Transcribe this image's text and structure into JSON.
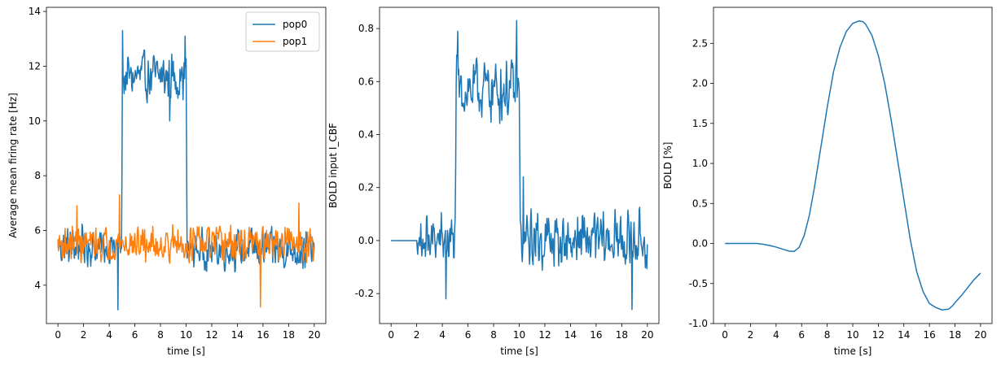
{
  "chart_data": [
    {
      "type": "line",
      "xlabel": "time [s]",
      "ylabel": "Average mean firing rate [Hz]",
      "xlim": [
        -0.9,
        20.9
      ],
      "ylim": [
        2.6,
        14.15
      ],
      "xticks": [
        0,
        2,
        4,
        6,
        8,
        10,
        12,
        14,
        16,
        18,
        20
      ],
      "yticks": [
        4,
        6,
        8,
        10,
        12,
        14
      ],
      "grid": false,
      "legend": {
        "placement": "top-right",
        "entries": [
          "pop0",
          "pop1"
        ]
      },
      "series": [
        {
          "name": "pop0",
          "color": "#1f77b4",
          "kind": "noisy",
          "step": 0.04,
          "x_start": 0,
          "x_end": 20,
          "segments": [
            {
              "from": 0,
              "to": 4.98,
              "mean": 5.4,
              "amp": 0.85
            },
            {
              "from": 5.05,
              "to": 10.0,
              "mean": 11.6,
              "amp": 1.05
            },
            {
              "from": 10.05,
              "to": 20,
              "mean": 5.3,
              "amp": 0.85
            }
          ],
          "extremes": [
            [
              4.68,
              3.1
            ],
            [
              5.05,
              13.3
            ],
            [
              9.9,
              13.1
            ],
            [
              8.7,
              10.0
            ]
          ]
        },
        {
          "name": "pop1",
          "color": "#ff7f0e",
          "kind": "noisy",
          "step": 0.04,
          "x_start": 0,
          "x_end": 20,
          "segments": [
            {
              "from": 0,
              "to": 20,
              "mean": 5.5,
              "amp": 0.75
            }
          ],
          "extremes": [
            [
              4.8,
              7.3
            ],
            [
              15.8,
              3.2
            ],
            [
              18.8,
              7.0
            ],
            [
              1.5,
              6.9
            ]
          ]
        }
      ]
    },
    {
      "type": "line",
      "xlabel": "time [s]",
      "ylabel": "BOLD input I_CBF",
      "xlim": [
        -0.9,
        20.9
      ],
      "ylim": [
        -0.313,
        0.88
      ],
      "xticks": [
        0,
        2,
        4,
        6,
        8,
        10,
        12,
        14,
        16,
        18,
        20
      ],
      "yticks": [
        -0.2,
        0.0,
        0.2,
        0.4,
        0.6,
        0.8
      ],
      "grid": false,
      "series": [
        {
          "color": "#1f77b4",
          "kind": "noisy",
          "step": 0.04,
          "x_start": 0,
          "x_end": 20,
          "segments": [
            {
              "from": 0,
              "to": 2.0,
              "mean": 0.0,
              "amp": 0.0
            },
            {
              "from": 2.0,
              "to": 5.0,
              "mean": 0.0,
              "amp": 0.12
            },
            {
              "from": 5.05,
              "to": 10.0,
              "mean": 0.57,
              "amp": 0.14
            },
            {
              "from": 10.05,
              "to": 20,
              "mean": 0.0,
              "amp": 0.13
            }
          ],
          "extremes": [
            [
              5.2,
              0.79
            ],
            [
              9.8,
              0.83
            ],
            [
              4.3,
              -0.22
            ],
            [
              18.8,
              -0.26
            ],
            [
              10.3,
              0.24
            ]
          ]
        }
      ]
    },
    {
      "type": "line",
      "xlabel": "time [s]",
      "ylabel": "BOLD [%]",
      "xlim": [
        -0.9,
        20.9
      ],
      "ylim": [
        -1.0,
        2.95
      ],
      "xticks": [
        0,
        2,
        4,
        6,
        8,
        10,
        12,
        14,
        16,
        18,
        20
      ],
      "yticks": [
        -1.0,
        -0.5,
        0.0,
        0.5,
        1.0,
        1.5,
        2.0,
        2.5
      ],
      "grid": false,
      "series": [
        {
          "color": "#1f77b4",
          "kind": "smooth",
          "x": [
            0,
            1,
            2,
            2.5,
            3,
            3.5,
            4,
            4.5,
            5,
            5.4,
            5.8,
            6.2,
            6.6,
            7,
            7.5,
            8,
            8.5,
            9,
            9.5,
            10,
            10.5,
            10.8,
            11,
            11.5,
            12,
            12.5,
            13,
            13.5,
            14,
            14.5,
            15,
            15.5,
            16,
            16.5,
            17,
            17.5,
            17.8,
            18,
            18.5,
            19,
            19.5,
            20
          ],
          "y": [
            0.0,
            0.0,
            0.0,
            0.0,
            -0.01,
            -0.025,
            -0.045,
            -0.07,
            -0.095,
            -0.1,
            -0.05,
            0.1,
            0.35,
            0.7,
            1.2,
            1.7,
            2.15,
            2.45,
            2.65,
            2.75,
            2.78,
            2.77,
            2.74,
            2.6,
            2.35,
            2.0,
            1.55,
            1.05,
            0.55,
            0.05,
            -0.35,
            -0.6,
            -0.75,
            -0.8,
            -0.83,
            -0.82,
            -0.78,
            -0.74,
            -0.65,
            -0.55,
            -0.45,
            -0.37
          ]
        }
      ]
    }
  ]
}
